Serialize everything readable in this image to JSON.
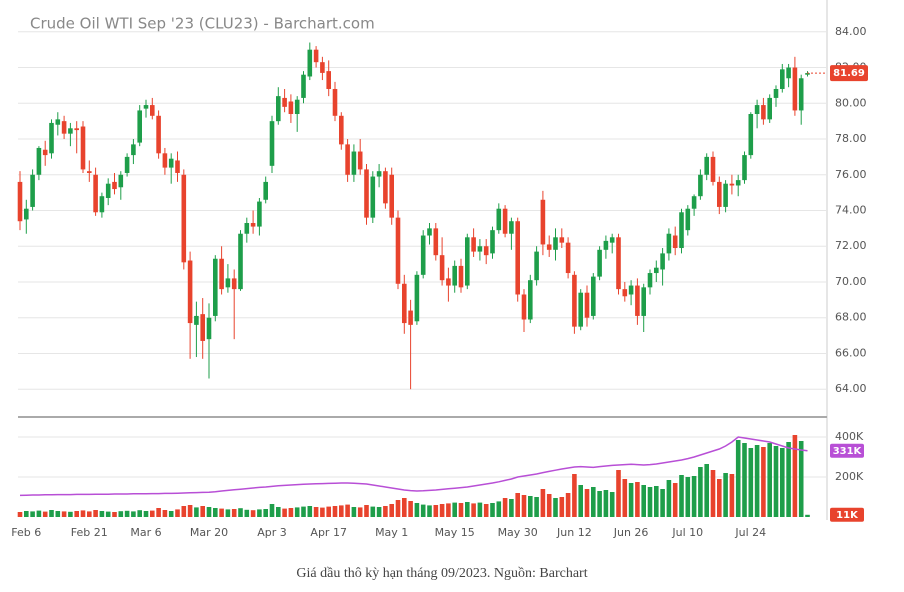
{
  "chart_data": [
    {
      "type": "candlestick",
      "title": "Crude Oil WTI Sep '23 (CLU23) - Barchart.com",
      "up_color": "#1e9e4a",
      "down_color": "#e8432d",
      "ylim": [
        62.5,
        85.5
      ],
      "yticks": [
        {
          "value": 64,
          "label": "64.00"
        },
        {
          "value": 66,
          "label": "66.00"
        },
        {
          "value": 68,
          "label": "68.00"
        },
        {
          "value": 70,
          "label": "70.00"
        },
        {
          "value": 72,
          "label": "72.00"
        },
        {
          "value": 74,
          "label": "74.00"
        },
        {
          "value": 76,
          "label": "76.00"
        },
        {
          "value": 78,
          "label": "78.00"
        },
        {
          "value": 80,
          "label": "80.00"
        },
        {
          "value": 82,
          "label": "82.00"
        },
        {
          "value": 84,
          "label": "84.00"
        }
      ],
      "grid": true,
      "last_price": 81.69,
      "candles": [
        [
          75.6,
          76.2,
          72.9,
          73.4
        ],
        [
          73.5,
          74.6,
          72.7,
          74.1
        ],
        [
          74.2,
          76.3,
          74.0,
          76.0
        ],
        [
          76.0,
          77.6,
          75.7,
          77.5
        ],
        [
          77.4,
          77.9,
          76.5,
          77.1
        ],
        [
          77.2,
          79.1,
          76.9,
          78.9
        ],
        [
          78.8,
          79.5,
          78.2,
          79.1
        ],
        [
          79.0,
          79.3,
          78.0,
          78.3
        ],
        [
          78.3,
          78.9,
          77.6,
          78.6
        ],
        [
          78.6,
          79.0,
          77.2,
          78.5
        ],
        [
          78.7,
          79.0,
          76.1,
          76.3
        ],
        [
          76.2,
          76.8,
          75.6,
          76.1
        ],
        [
          76.0,
          76.4,
          73.7,
          73.9
        ],
        [
          73.9,
          75.0,
          73.6,
          74.8
        ],
        [
          74.7,
          75.8,
          74.3,
          75.5
        ],
        [
          75.6,
          76.1,
          74.9,
          75.2
        ],
        [
          75.3,
          76.2,
          74.6,
          76.0
        ],
        [
          76.1,
          77.2,
          75.9,
          77.0
        ],
        [
          77.1,
          78.0,
          76.6,
          77.7
        ],
        [
          77.8,
          79.9,
          77.6,
          79.6
        ],
        [
          79.7,
          80.2,
          79.2,
          79.9
        ],
        [
          79.9,
          80.3,
          79.1,
          79.3
        ],
        [
          79.3,
          79.6,
          76.9,
          77.2
        ],
        [
          77.2,
          77.5,
          76.0,
          76.4
        ],
        [
          76.4,
          77.2,
          75.5,
          76.9
        ],
        [
          76.8,
          77.3,
          75.6,
          76.1
        ],
        [
          76.0,
          76.3,
          70.7,
          71.1
        ],
        [
          71.2,
          71.7,
          65.7,
          67.7
        ],
        [
          67.6,
          68.9,
          65.8,
          68.1
        ],
        [
          68.2,
          69.1,
          65.7,
          66.7
        ],
        [
          66.8,
          68.8,
          64.6,
          68.0
        ],
        [
          68.1,
          71.5,
          67.8,
          71.3
        ],
        [
          71.3,
          72.0,
          69.3,
          69.6
        ],
        [
          69.7,
          71.0,
          69.4,
          70.2
        ],
        [
          70.2,
          70.7,
          66.8,
          69.6
        ],
        [
          69.6,
          72.9,
          69.5,
          72.7
        ],
        [
          72.7,
          73.6,
          72.2,
          73.3
        ],
        [
          73.3,
          74.0,
          72.7,
          73.1
        ],
        [
          73.1,
          74.7,
          72.6,
          74.5
        ],
        [
          74.6,
          75.9,
          74.4,
          75.6
        ],
        [
          76.5,
          79.3,
          76.1,
          79.0
        ],
        [
          79.0,
          80.9,
          78.8,
          80.4
        ],
        [
          80.3,
          80.8,
          79.5,
          79.8
        ],
        [
          80.1,
          80.5,
          78.9,
          79.4
        ],
        [
          79.4,
          80.4,
          78.4,
          80.2
        ],
        [
          80.3,
          81.8,
          80.0,
          81.6
        ],
        [
          81.5,
          83.4,
          81.3,
          83.0
        ],
        [
          83.0,
          83.2,
          82.0,
          82.3
        ],
        [
          82.3,
          82.6,
          81.3,
          81.7
        ],
        [
          81.8,
          82.4,
          80.4,
          80.8
        ],
        [
          80.8,
          81.2,
          79.0,
          79.3
        ],
        [
          79.3,
          79.5,
          77.4,
          77.7
        ],
        [
          77.7,
          78.0,
          75.6,
          76.0
        ],
        [
          76.0,
          77.7,
          75.6,
          77.3
        ],
        [
          77.3,
          78.0,
          76.0,
          76.3
        ],
        [
          76.3,
          76.6,
          73.2,
          73.6
        ],
        [
          73.6,
          76.2,
          73.3,
          75.9
        ],
        [
          75.9,
          76.6,
          75.3,
          76.2
        ],
        [
          76.2,
          76.4,
          74.1,
          74.4
        ],
        [
          76.0,
          76.4,
          73.2,
          73.6
        ],
        [
          73.6,
          74.0,
          69.6,
          69.9
        ],
        [
          69.9,
          70.4,
          67.1,
          67.7
        ],
        [
          68.4,
          69.0,
          64.0,
          67.6
        ],
        [
          67.8,
          70.6,
          67.6,
          70.4
        ],
        [
          70.4,
          72.9,
          70.2,
          72.6
        ],
        [
          72.6,
          73.3,
          72.1,
          73.0
        ],
        [
          73.0,
          73.3,
          71.2,
          71.5
        ],
        [
          71.5,
          72.5,
          69.8,
          70.1
        ],
        [
          70.2,
          70.8,
          68.9,
          69.8
        ],
        [
          69.8,
          71.2,
          69.4,
          70.9
        ],
        [
          70.9,
          71.3,
          69.4,
          69.7
        ],
        [
          69.8,
          72.7,
          69.6,
          72.5
        ],
        [
          72.5,
          73.0,
          71.4,
          71.7
        ],
        [
          71.7,
          72.4,
          71.2,
          72.0
        ],
        [
          72.0,
          72.4,
          71.0,
          71.5
        ],
        [
          71.6,
          73.1,
          71.3,
          72.9
        ],
        [
          72.9,
          74.4,
          72.7,
          74.1
        ],
        [
          74.1,
          74.3,
          72.5,
          72.7
        ],
        [
          72.7,
          73.6,
          71.8,
          73.4
        ],
        [
          73.4,
          73.6,
          68.9,
          69.3
        ],
        [
          69.3,
          69.6,
          67.2,
          67.9
        ],
        [
          67.9,
          70.4,
          67.7,
          70.1
        ],
        [
          70.1,
          72.0,
          69.8,
          71.7
        ],
        [
          74.6,
          75.1,
          71.5,
          72.1
        ],
        [
          72.1,
          72.6,
          71.4,
          71.8
        ],
        [
          71.8,
          73.0,
          71.2,
          72.5
        ],
        [
          72.5,
          73.0,
          71.9,
          72.2
        ],
        [
          72.2,
          72.5,
          70.2,
          70.5
        ],
        [
          70.4,
          70.6,
          67.1,
          67.5
        ],
        [
          67.5,
          69.6,
          67.3,
          69.4
        ],
        [
          69.4,
          69.8,
          67.5,
          68.0
        ],
        [
          68.1,
          70.5,
          67.9,
          70.3
        ],
        [
          70.3,
          72.0,
          70.1,
          71.8
        ],
        [
          71.8,
          72.6,
          71.3,
          72.3
        ],
        [
          72.2,
          72.7,
          71.6,
          72.5
        ],
        [
          72.5,
          72.7,
          69.3,
          69.6
        ],
        [
          69.6,
          70.0,
          68.9,
          69.2
        ],
        [
          69.3,
          70.1,
          68.7,
          69.8
        ],
        [
          69.8,
          70.2,
          67.6,
          68.1
        ],
        [
          68.1,
          69.9,
          67.2,
          69.7
        ],
        [
          69.7,
          70.7,
          69.3,
          70.5
        ],
        [
          70.5,
          71.2,
          70.0,
          70.8
        ],
        [
          70.7,
          71.9,
          69.8,
          71.6
        ],
        [
          71.6,
          73.0,
          71.2,
          72.7
        ],
        [
          72.6,
          73.1,
          71.5,
          71.9
        ],
        [
          71.9,
          74.1,
          71.6,
          73.9
        ],
        [
          72.9,
          74.3,
          72.6,
          74.1
        ],
        [
          74.1,
          74.9,
          73.7,
          74.8
        ],
        [
          74.8,
          76.3,
          74.6,
          76.0
        ],
        [
          76.0,
          77.2,
          75.7,
          77.0
        ],
        [
          77.0,
          77.3,
          75.4,
          75.6
        ],
        [
          75.6,
          75.9,
          73.8,
          74.2
        ],
        [
          74.2,
          75.7,
          73.9,
          75.5
        ],
        [
          75.5,
          76.0,
          74.9,
          75.4
        ],
        [
          75.4,
          76.0,
          74.8,
          75.7
        ],
        [
          75.7,
          77.3,
          75.5,
          77.1
        ],
        [
          77.1,
          79.5,
          76.9,
          79.4
        ],
        [
          79.4,
          80.2,
          78.6,
          79.9
        ],
        [
          79.9,
          80.3,
          78.8,
          79.1
        ],
        [
          79.1,
          80.5,
          78.9,
          80.3
        ],
        [
          80.3,
          81.0,
          79.8,
          80.8
        ],
        [
          80.8,
          82.2,
          80.6,
          81.9
        ],
        [
          81.4,
          82.2,
          80.9,
          82.0
        ],
        [
          82.0,
          82.6,
          79.3,
          79.6
        ],
        [
          79.6,
          81.6,
          78.8,
          81.4
        ],
        [
          81.6,
          81.8,
          81.5,
          81.69
        ]
      ]
    },
    {
      "type": "bar",
      "categories": [
        null,
        "Feb 6",
        null,
        null,
        null,
        null,
        null,
        null,
        null,
        null,
        null,
        "Feb 21",
        null,
        null,
        null,
        null,
        null,
        null,
        null,
        null,
        "Mar 6",
        null,
        null,
        null,
        null,
        null,
        null,
        null,
        null,
        null,
        "Mar 20",
        null,
        null,
        null,
        null,
        null,
        null,
        null,
        null,
        null,
        "Apr 3",
        null,
        null,
        null,
        null,
        null,
        null,
        null,
        null,
        "Apr 17",
        null,
        null,
        null,
        null,
        null,
        null,
        null,
        null,
        null,
        "May 1",
        null,
        null,
        null,
        null,
        null,
        null,
        null,
        null,
        null,
        "May 15",
        null,
        null,
        null,
        null,
        null,
        null,
        null,
        null,
        null,
        "May 30",
        null,
        null,
        null,
        null,
        null,
        null,
        null,
        null,
        "Jun 12",
        null,
        null,
        null,
        null,
        null,
        null,
        null,
        null,
        "Jun 26",
        null,
        null,
        null,
        null,
        null,
        null,
        null,
        null,
        "Jul 10",
        null,
        null,
        null,
        null,
        null,
        null,
        null,
        null,
        null,
        "Jul 24",
        null,
        null,
        null,
        null,
        null,
        null,
        null,
        null,
        null
      ],
      "ylim": [
        0,
        475000
      ],
      "yticks": [
        {
          "value": 200000,
          "label": "200K"
        },
        {
          "value": 400000,
          "label": "400K"
        }
      ],
      "grid": true,
      "values": [
        25000,
        30000,
        28000,
        32000,
        27000,
        35000,
        30000,
        28000,
        26000,
        30000,
        33000,
        28000,
        35000,
        30000,
        27000,
        25000,
        29000,
        31000,
        28000,
        34000,
        30000,
        32000,
        45000,
        35000,
        30000,
        38000,
        55000,
        60000,
        48000,
        55000,
        50000,
        45000,
        42000,
        38000,
        40000,
        44000,
        36000,
        34000,
        38000,
        40000,
        65000,
        50000,
        42000,
        45000,
        48000,
        52000,
        55000,
        50000,
        47000,
        52000,
        55000,
        58000,
        62000,
        50000,
        48000,
        60000,
        52000,
        50000,
        55000,
        65000,
        85000,
        95000,
        80000,
        70000,
        62000,
        58000,
        60000,
        65000,
        68000,
        72000,
        70000,
        75000,
        68000,
        72000,
        65000,
        70000,
        78000,
        95000,
        90000,
        120000,
        110000,
        105000,
        100000,
        140000,
        115000,
        95000,
        100000,
        120000,
        215000,
        160000,
        140000,
        150000,
        130000,
        135000,
        125000,
        235000,
        190000,
        170000,
        175000,
        160000,
        150000,
        155000,
        140000,
        185000,
        170000,
        210000,
        200000,
        205000,
        250000,
        265000,
        235000,
        190000,
        220000,
        215000,
        385000,
        370000,
        345000,
        360000,
        350000,
        370000,
        355000,
        345000,
        375000,
        410000,
        380000,
        11000
      ],
      "average": [
        108000,
        109000,
        110000,
        110000,
        111000,
        111000,
        112000,
        112000,
        112000,
        113000,
        113000,
        113000,
        114000,
        114000,
        114000,
        115000,
        115000,
        115000,
        116000,
        116000,
        116000,
        117000,
        117000,
        118000,
        118000,
        119000,
        120000,
        121000,
        122000,
        123000,
        124000,
        126000,
        130000,
        133000,
        136000,
        139000,
        142000,
        145000,
        148000,
        150000,
        153000,
        156000,
        158000,
        160000,
        162000,
        164000,
        165000,
        166000,
        167000,
        168000,
        169000,
        170000,
        170000,
        169000,
        167000,
        165000,
        160000,
        155000,
        150000,
        145000,
        140000,
        135000,
        132000,
        130000,
        131000,
        133000,
        135000,
        138000,
        141000,
        144000,
        147000,
        150000,
        155000,
        160000,
        165000,
        170000,
        176000,
        183000,
        190000,
        200000,
        205000,
        210000,
        215000,
        222000,
        228000,
        234000,
        240000,
        245000,
        250000,
        252000,
        250000,
        248000,
        252000,
        255000,
        258000,
        260000,
        262000,
        264000,
        262000,
        260000,
        262000,
        265000,
        270000,
        275000,
        280000,
        285000,
        292000,
        300000,
        310000,
        320000,
        330000,
        340000,
        355000,
        375000,
        400000,
        395000,
        390000,
        385000,
        380000,
        375000,
        365000,
        355000,
        345000,
        340000,
        335000,
        331000
      ],
      "average_color": "#b84fd6",
      "last_volume": {
        "value": 11000,
        "label": "11K"
      },
      "last_average": {
        "value": 331000,
        "label": "331K"
      }
    },
    {
      "type": "caption",
      "text": "Giá dầu thô kỳ hạn tháng 09/2023. Nguồn: Barchart"
    }
  ]
}
